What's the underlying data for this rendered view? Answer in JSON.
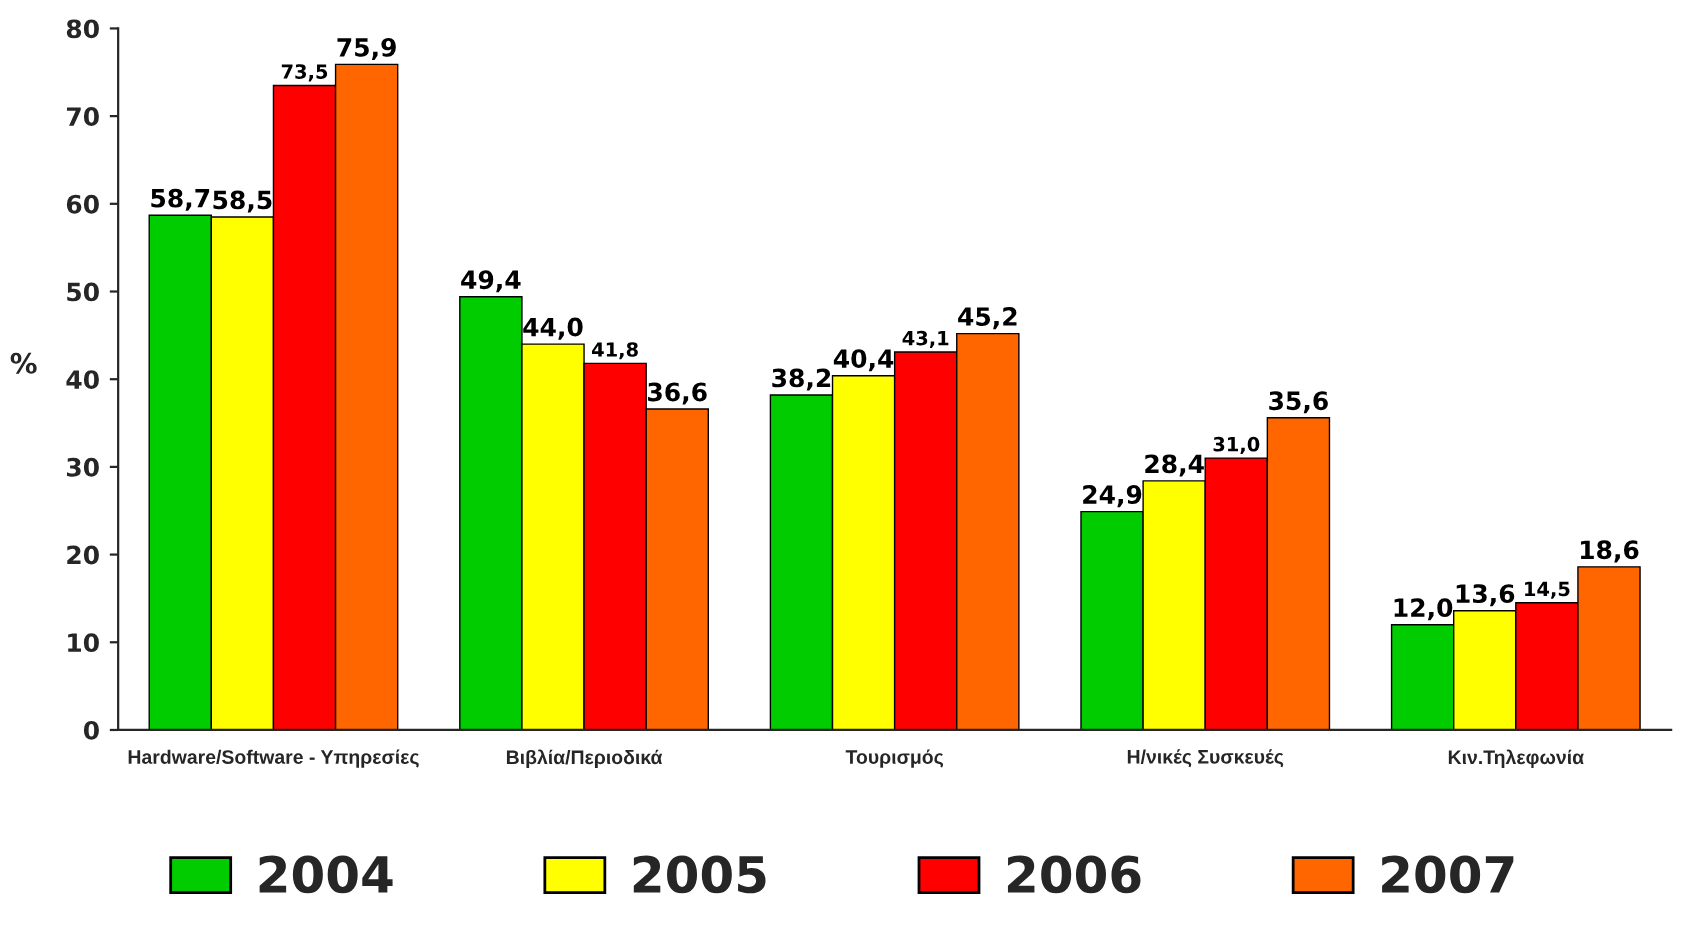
{
  "chart_data": {
    "type": "bar",
    "ylabel": "%",
    "categories": [
      "Hardware/Software - Υπηρεσίες",
      "Βιβλία/Περιοδικά",
      "Τουρισμός",
      "Η/νικές Συσκευές",
      "Κιν.Τηλεφωνία"
    ],
    "series": [
      {
        "name": "2004",
        "color": "#00cc00",
        "values": [
          58.7,
          49.4,
          38.2,
          24.9,
          12.0
        ],
        "value_labels": [
          "58,7",
          "49,4",
          "38,2",
          "24,9",
          "12,0"
        ]
      },
      {
        "name": "2005",
        "color": "#ffff00",
        "values": [
          58.5,
          44.0,
          40.4,
          28.4,
          13.6
        ],
        "value_labels": [
          "58,5",
          "44,0",
          "40,4",
          "28,4",
          "13,6"
        ]
      },
      {
        "name": "2006",
        "color": "#ff0000",
        "values": [
          73.5,
          41.8,
          43.1,
          31.0,
          14.5
        ],
        "value_labels": [
          "73,5",
          "41,8",
          "43,1",
          "31,0",
          "14,5"
        ]
      },
      {
        "name": "2007",
        "color": "#ff6600",
        "values": [
          75.9,
          36.6,
          45.2,
          35.6,
          18.6
        ],
        "value_labels": [
          "75,9",
          "36,6",
          "45,2",
          "35,6",
          "18,6"
        ]
      }
    ],
    "ylim": [
      0,
      80
    ],
    "yticks": [
      0,
      10,
      20,
      30,
      40,
      50,
      60,
      70,
      80
    ],
    "grid": false,
    "legend": "bottom"
  }
}
